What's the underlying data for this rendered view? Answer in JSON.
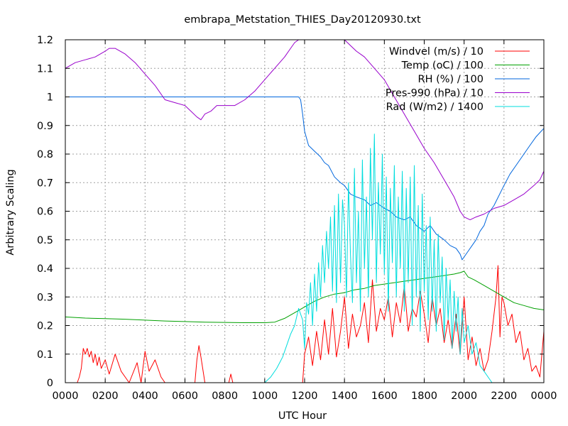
{
  "chart_data": {
    "type": "line",
    "title": "embrapa_Metstation_THIES_Day20120930.txt",
    "xlabel": "UTC Hour",
    "ylabel": "Arbitrary Scaling",
    "xlim": [
      0,
      24
    ],
    "ylim": [
      0,
      1.2
    ],
    "grid": true,
    "legend_position": "top-right",
    "xtick_labels": [
      "0000",
      "0200",
      "0400",
      "0600",
      "0800",
      "1000",
      "1200",
      "1400",
      "1600",
      "1800",
      "2000",
      "2200",
      "0000"
    ],
    "ytick_labels": [
      "0",
      "0.1",
      "0.2",
      "0.3",
      "0.4",
      "0.5",
      "0.6",
      "0.7",
      "0.8",
      "0.9",
      "1",
      "1.1",
      "1.2"
    ],
    "series": [
      {
        "name": "Windvel (m/s) / 10",
        "color": "#ff0000",
        "x": [
          0,
          0.6,
          0.7,
          0.8,
          0.9,
          1.0,
          1.1,
          1.2,
          1.3,
          1.4,
          1.5,
          1.6,
          1.7,
          1.8,
          2.0,
          2.2,
          2.5,
          2.8,
          3.0,
          3.2,
          3.6,
          3.8,
          4.0,
          4.2,
          4.5,
          4.8,
          5.0,
          5.5,
          6.0,
          6.5,
          6.6,
          6.7,
          6.8,
          7.0,
          7.5,
          8.0,
          8.2,
          8.3,
          8.4,
          9.0,
          10.0,
          11.0,
          11.5,
          11.8,
          11.9,
          12.0,
          12.2,
          12.4,
          12.6,
          12.8,
          13.0,
          13.2,
          13.4,
          13.6,
          13.8,
          14.0,
          14.2,
          14.4,
          14.6,
          14.8,
          15.0,
          15.2,
          15.4,
          15.6,
          15.8,
          16.0,
          16.2,
          16.4,
          16.6,
          16.8,
          17.0,
          17.2,
          17.4,
          17.6,
          17.8,
          18.0,
          18.2,
          18.4,
          18.6,
          18.8,
          19.0,
          19.2,
          19.4,
          19.6,
          19.8,
          20.0,
          20.2,
          20.4,
          20.6,
          20.8,
          21.0,
          21.2,
          21.4,
          21.5,
          21.6,
          21.7,
          21.8,
          21.9,
          22.0,
          22.2,
          22.4,
          22.6,
          22.8,
          23.0,
          23.2,
          23.4,
          23.6,
          23.8,
          24.0
        ],
        "y": [
          0,
          0,
          0.02,
          0.05,
          0.12,
          0.1,
          0.12,
          0.09,
          0.11,
          0.07,
          0.1,
          0.06,
          0.09,
          0.05,
          0.08,
          0.03,
          0.1,
          0.04,
          0.02,
          0,
          0.07,
          0,
          0.11,
          0.04,
          0.08,
          0.02,
          0,
          0,
          0,
          0,
          0.08,
          0.13,
          0.09,
          0,
          0,
          0,
          0,
          0.03,
          0,
          0,
          0,
          0,
          0,
          0,
          0,
          0.1,
          0.16,
          0.06,
          0.18,
          0.08,
          0.22,
          0.1,
          0.26,
          0.09,
          0.18,
          0.3,
          0.12,
          0.24,
          0.16,
          0.2,
          0.28,
          0.14,
          0.36,
          0.18,
          0.26,
          0.22,
          0.3,
          0.16,
          0.28,
          0.21,
          0.34,
          0.18,
          0.26,
          0.23,
          0.32,
          0.24,
          0.14,
          0.3,
          0.2,
          0.26,
          0.14,
          0.22,
          0.12,
          0.24,
          0.1,
          0.3,
          0.08,
          0.16,
          0.06,
          0.12,
          0.04,
          0.08,
          0.18,
          0.24,
          0.3,
          0.41,
          0.16,
          0.3,
          0.28,
          0.2,
          0.24,
          0.14,
          0.18,
          0.08,
          0.12,
          0.04,
          0.06,
          0.02,
          0.18
        ]
      },
      {
        "name": "Temp (oC) / 100",
        "color": "#00a000",
        "x": [
          0,
          1,
          2,
          3,
          4,
          5,
          6,
          7,
          8,
          9,
          10,
          10.5,
          11.0,
          11.5,
          12.0,
          12.5,
          13.0,
          13.5,
          14.0,
          14.5,
          15.0,
          15.5,
          16.0,
          16.5,
          17.0,
          17.5,
          18.0,
          18.5,
          19.0,
          19.5,
          19.8,
          20.0,
          20.2,
          20.5,
          21.0,
          21.5,
          22.0,
          22.5,
          23.0,
          23.5,
          24.0
        ],
        "y": [
          0.23,
          0.226,
          0.224,
          0.222,
          0.219,
          0.216,
          0.214,
          0.212,
          0.211,
          0.21,
          0.21,
          0.212,
          0.225,
          0.245,
          0.265,
          0.285,
          0.3,
          0.31,
          0.315,
          0.325,
          0.33,
          0.34,
          0.345,
          0.35,
          0.355,
          0.36,
          0.365,
          0.37,
          0.375,
          0.38,
          0.385,
          0.39,
          0.37,
          0.36,
          0.34,
          0.32,
          0.3,
          0.28,
          0.27,
          0.26,
          0.255
        ]
      },
      {
        "name": "RH (%) / 100",
        "color": "#0066dd",
        "x": [
          0,
          11.7,
          11.8,
          11.9,
          12.0,
          12.2,
          12.5,
          12.8,
          13.0,
          13.2,
          13.5,
          13.8,
          14.0,
          14.3,
          14.6,
          15.0,
          15.3,
          15.6,
          16.0,
          16.3,
          16.6,
          17.0,
          17.3,
          17.6,
          18.0,
          18.3,
          18.6,
          19.0,
          19.3,
          19.6,
          19.8,
          19.9,
          20.0,
          20.2,
          20.4,
          20.6,
          20.8,
          21.0,
          21.2,
          21.5,
          22.0,
          22.3,
          22.6,
          23.0,
          23.3,
          23.6,
          24.0
        ],
        "y": [
          1.0,
          1.0,
          0.99,
          0.94,
          0.88,
          0.83,
          0.81,
          0.79,
          0.77,
          0.76,
          0.72,
          0.7,
          0.69,
          0.66,
          0.65,
          0.64,
          0.62,
          0.63,
          0.61,
          0.6,
          0.58,
          0.57,
          0.58,
          0.55,
          0.53,
          0.55,
          0.52,
          0.5,
          0.48,
          0.47,
          0.45,
          0.43,
          0.44,
          0.46,
          0.48,
          0.5,
          0.53,
          0.55,
          0.59,
          0.62,
          0.69,
          0.73,
          0.76,
          0.8,
          0.83,
          0.86,
          0.89
        ]
      },
      {
        "name": "Pres-990 (hPa) / 10",
        "color": "#9900cc",
        "x": [
          0,
          0.5,
          1.0,
          1.5,
          2.0,
          2.2,
          2.5,
          3.0,
          3.5,
          4.0,
          4.5,
          5.0,
          5.5,
          6.0,
          6.3,
          6.6,
          6.8,
          7.0,
          7.3,
          7.6,
          8.0,
          8.5,
          9.0,
          9.5,
          10.0,
          10.5,
          11.0,
          11.3,
          11.5,
          11.7,
          14.0,
          14.3,
          14.6,
          15.0,
          15.5,
          16.0,
          16.5,
          17.0,
          17.5,
          18.0,
          18.5,
          19.0,
          19.5,
          19.8,
          20.0,
          20.3,
          20.6,
          21.0,
          21.5,
          22.0,
          22.5,
          23.0,
          23.5,
          23.8,
          24.0
        ],
        "y": [
          1.1,
          1.12,
          1.13,
          1.14,
          1.16,
          1.17,
          1.17,
          1.15,
          1.12,
          1.08,
          1.04,
          0.99,
          0.98,
          0.97,
          0.95,
          0.93,
          0.92,
          0.94,
          0.95,
          0.97,
          0.97,
          0.97,
          0.99,
          1.02,
          1.06,
          1.1,
          1.14,
          1.17,
          1.19,
          1.2,
          1.2,
          1.18,
          1.16,
          1.14,
          1.1,
          1.06,
          1.0,
          0.94,
          0.88,
          0.82,
          0.77,
          0.71,
          0.65,
          0.6,
          0.58,
          0.57,
          0.58,
          0.59,
          0.61,
          0.62,
          0.64,
          0.66,
          0.69,
          0.71,
          0.74
        ]
      },
      {
        "name": "Rad (W/m2) / 1400",
        "color": "#00dddd",
        "x": [
          0,
          10.0,
          10.3,
          10.6,
          10.9,
          11.1,
          11.3,
          11.5,
          11.7,
          11.9,
          12.0,
          12.1,
          12.2,
          12.3,
          12.4,
          12.5,
          12.6,
          12.7,
          12.8,
          12.9,
          13.0,
          13.1,
          13.2,
          13.3,
          13.4,
          13.5,
          13.6,
          13.7,
          13.8,
          13.9,
          14.0,
          14.1,
          14.2,
          14.3,
          14.4,
          14.5,
          14.6,
          14.7,
          14.8,
          14.9,
          15.0,
          15.1,
          15.2,
          15.3,
          15.4,
          15.5,
          15.6,
          15.7,
          15.8,
          15.9,
          16.0,
          16.1,
          16.2,
          16.3,
          16.4,
          16.5,
          16.6,
          16.7,
          16.8,
          16.9,
          17.0,
          17.1,
          17.2,
          17.3,
          17.4,
          17.5,
          17.6,
          17.7,
          17.8,
          17.9,
          18.0,
          18.1,
          18.2,
          18.3,
          18.4,
          18.5,
          18.6,
          18.7,
          18.8,
          18.9,
          19.0,
          19.1,
          19.2,
          19.3,
          19.4,
          19.5,
          19.6,
          19.7,
          19.8,
          19.9,
          20.0,
          20.2,
          20.4,
          20.6,
          20.8,
          21.0,
          21.2,
          21.4,
          24.0
        ],
        "y": [
          0,
          0,
          0.02,
          0.05,
          0.09,
          0.13,
          0.17,
          0.2,
          0.26,
          0.22,
          0.12,
          0.28,
          0.24,
          0.35,
          0.2,
          0.38,
          0.25,
          0.42,
          0.3,
          0.48,
          0.35,
          0.53,
          0.4,
          0.58,
          0.32,
          0.62,
          0.28,
          0.66,
          0.35,
          0.64,
          0.55,
          0.3,
          0.7,
          0.45,
          0.28,
          0.75,
          0.35,
          0.6,
          0.25,
          0.78,
          0.4,
          0.65,
          0.3,
          0.82,
          0.5,
          0.87,
          0.35,
          0.7,
          0.45,
          0.8,
          0.38,
          0.72,
          0.25,
          0.68,
          0.42,
          0.76,
          0.3,
          0.65,
          0.4,
          0.74,
          0.25,
          0.68,
          0.35,
          0.72,
          0.2,
          0.76,
          0.3,
          0.62,
          0.18,
          0.66,
          0.32,
          0.55,
          0.22,
          0.58,
          0.25,
          0.5,
          0.18,
          0.52,
          0.28,
          0.44,
          0.15,
          0.4,
          0.22,
          0.36,
          0.12,
          0.32,
          0.18,
          0.3,
          0.1,
          0.26,
          0.14,
          0.2,
          0.1,
          0.14,
          0.06,
          0.04,
          0.02,
          0,
          0
        ]
      }
    ]
  }
}
